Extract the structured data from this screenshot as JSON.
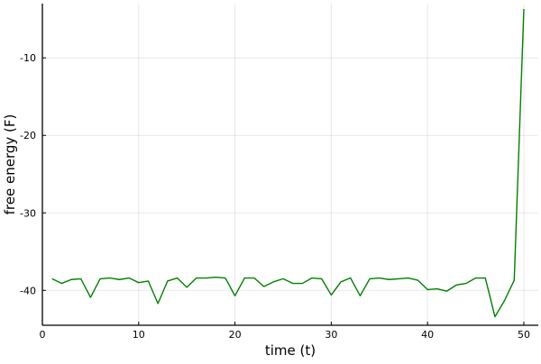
{
  "chart_data": {
    "type": "line",
    "title": "",
    "xlabel": "time (t)",
    "ylabel": "free energy (F)",
    "xlim": [
      0,
      51.5
    ],
    "ylim": [
      -44.5,
      -3
    ],
    "xticks": [
      0,
      10,
      20,
      30,
      40,
      50
    ],
    "yticks": [
      -40,
      -30,
      -20,
      -10
    ],
    "grid": true,
    "legend": "none",
    "series": [
      {
        "color": "#008000",
        "x": [
          1,
          2,
          3,
          4,
          5,
          6,
          7,
          8,
          9,
          10,
          11,
          12,
          13,
          14,
          15,
          16,
          17,
          18,
          19,
          20,
          21,
          22,
          23,
          24,
          25,
          26,
          27,
          28,
          29,
          30,
          31,
          32,
          33,
          34,
          35,
          36,
          37,
          38,
          39,
          40,
          41,
          42,
          43,
          44,
          45,
          46,
          47,
          48,
          49,
          50
        ],
        "y": [
          -38.5,
          -39.1,
          -38.6,
          -38.5,
          -40.9,
          -38.5,
          -38.4,
          -38.6,
          -38.4,
          -39.0,
          -38.8,
          -41.7,
          -38.8,
          -38.4,
          -39.6,
          -38.4,
          -38.4,
          -38.3,
          -38.4,
          -40.7,
          -38.4,
          -38.4,
          -39.5,
          -38.9,
          -38.5,
          -39.1,
          -39.1,
          -38.4,
          -38.5,
          -40.6,
          -38.9,
          -38.4,
          -40.7,
          -38.5,
          -38.4,
          -38.6,
          -38.5,
          -38.4,
          -38.7,
          -39.9,
          -39.8,
          -40.1,
          -39.3,
          -39.1,
          -38.4,
          -38.4,
          -43.4,
          -41.3,
          -38.7,
          -3.7
        ]
      }
    ]
  }
}
